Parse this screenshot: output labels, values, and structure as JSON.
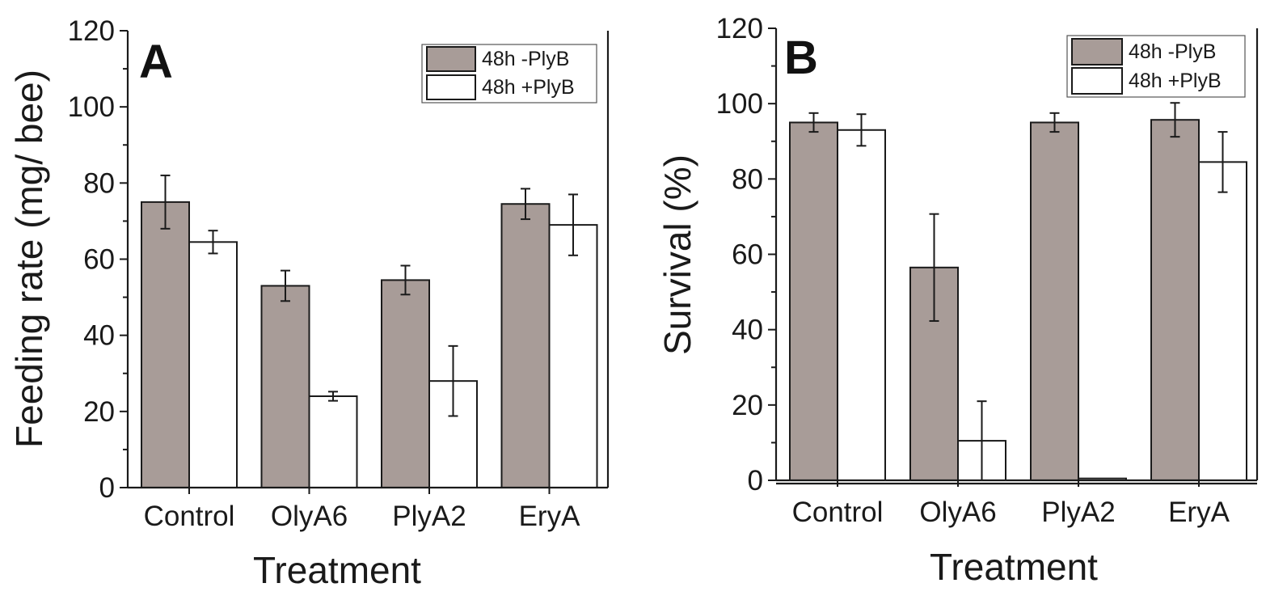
{
  "chart_data": [
    {
      "type": "bar",
      "panel_label": "A",
      "categories": [
        "Control",
        "OlyA6",
        "PlyA2",
        "EryA"
      ],
      "series": [
        {
          "name": "48h -PlyB",
          "values": [
            75,
            53,
            54.5,
            74.5
          ],
          "errors": [
            7,
            4,
            3.8,
            4
          ],
          "color": "#a89c98"
        },
        {
          "name": "48h +PlyB",
          "values": [
            64.5,
            24,
            28,
            69
          ],
          "errors": [
            3,
            1.2,
            9.2,
            8
          ],
          "color": "#ffffff"
        }
      ],
      "xlabel": "Treatment",
      "ylabel": "Feeding rate (mg/ bee)",
      "ylim": [
        0,
        120
      ],
      "yticks": [
        "0",
        "20",
        "40",
        "60",
        "80",
        "100",
        "120"
      ],
      "legend_position": "top-right"
    },
    {
      "type": "bar",
      "panel_label": "B",
      "categories": [
        "Control",
        "OlyA6",
        "PlyA2",
        "EryA"
      ],
      "series": [
        {
          "name": "48h -PlyB",
          "values": [
            95,
            56.5,
            95,
            95.7
          ],
          "errors": [
            2.5,
            14.2,
            2.5,
            4.5
          ],
          "color": "#a89c98"
        },
        {
          "name": "48h +PlyB",
          "values": [
            93,
            10.5,
            0.5,
            84.5
          ],
          "errors": [
            4.2,
            10.5,
            0,
            8
          ],
          "color": "#ffffff"
        }
      ],
      "xlabel": "Treatment",
      "ylabel": "Survival (%)",
      "ylim": [
        0,
        120
      ],
      "yticks": [
        "0",
        "20",
        "40",
        "60",
        "80",
        "100",
        "120"
      ],
      "legend_position": "top-right"
    }
  ]
}
